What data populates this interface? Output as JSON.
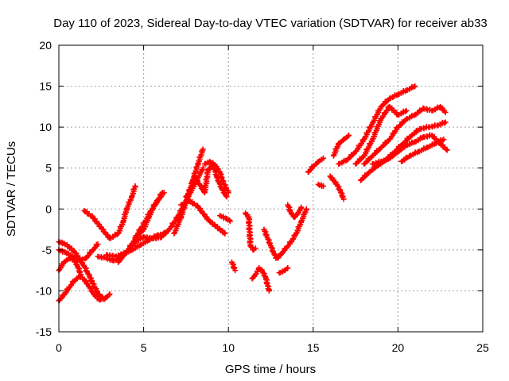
{
  "chart_data": {
    "type": "scatter",
    "title": "Day 110 of 2023, Sidereal Day-to-day VTEC variation (SDTVAR) for receiver ab33",
    "xlabel": "GPS time / hours",
    "ylabel": "SDTVAR / TECUs",
    "xlim": [
      0,
      25
    ],
    "ylim": [
      -15,
      20
    ],
    "xticks": [
      0,
      5,
      10,
      15,
      20,
      25
    ],
    "yticks": [
      -15,
      -10,
      -5,
      0,
      5,
      10,
      15,
      20
    ],
    "grid": true,
    "marker": "plus",
    "color": "#ff0000",
    "series": [
      {
        "x": [
          0.0,
          0.3,
          0.6,
          0.9,
          1.2,
          1.5,
          1.8,
          2.1,
          2.4,
          2.8,
          3.0
        ],
        "y": [
          -11.2,
          -10.5,
          -9.6,
          -8.8,
          -8.2,
          -8.6,
          -9.5,
          -10.5,
          -11.1,
          -10.8,
          -10.4
        ]
      },
      {
        "x": [
          0.0,
          0.3,
          0.6,
          0.9,
          1.2,
          1.5,
          1.8,
          2.1,
          2.4,
          2.7
        ],
        "y": [
          -4.0,
          -4.2,
          -4.6,
          -5.2,
          -6.0,
          -7.0,
          -8.2,
          -9.5,
          -10.6,
          -11.0
        ]
      },
      {
        "x": [
          0.0,
          0.4,
          0.8,
          1.2,
          1.6,
          2.0,
          2.3
        ],
        "y": [
          -5.0,
          -5.3,
          -5.8,
          -6.3,
          -6.0,
          -5.0,
          -4.3
        ]
      },
      {
        "x": [
          0.0,
          0.3,
          0.6,
          0.9,
          1.1,
          1.3
        ],
        "y": [
          -7.5,
          -6.5,
          -6.0,
          -6.2,
          -7.0,
          -8.0
        ]
      },
      {
        "x": [
          1.5,
          2.0,
          2.5,
          3.0,
          3.5,
          3.8,
          4.0,
          4.3,
          4.5
        ],
        "y": [
          -0.2,
          -1.0,
          -2.3,
          -3.6,
          -3.0,
          -1.5,
          0.0,
          1.5,
          2.8
        ]
      },
      {
        "x": [
          2.3,
          2.8,
          3.2,
          3.6,
          4.0,
          4.4,
          4.8,
          5.1,
          5.4,
          5.8,
          6.1
        ],
        "y": [
          -5.8,
          -6.0,
          -6.3,
          -6.0,
          -5.2,
          -4.0,
          -2.5,
          -1.5,
          -0.3,
          1.0,
          2.0
        ]
      },
      {
        "x": [
          2.8,
          3.3,
          3.8,
          4.3,
          4.8,
          5.3,
          5.8,
          6.3
        ],
        "y": [
          -5.6,
          -5.8,
          -5.5,
          -5.0,
          -4.4,
          -3.8,
          -3.2,
          -3.0
        ]
      },
      {
        "x": [
          3.5,
          4.0,
          4.5,
          5.0,
          5.5,
          6.0,
          6.5,
          7.0,
          7.5,
          8.0,
          8.5
        ],
        "y": [
          -6.5,
          -5.2,
          -4.0,
          -3.4,
          -3.6,
          -3.5,
          -2.5,
          -1.0,
          1.0,
          3.0,
          5.0
        ]
      },
      {
        "x": [
          4.5,
          5.0,
          5.3,
          5.6,
          5.9,
          6.2
        ],
        "y": [
          -3.5,
          -2.5,
          -1.0,
          0.3,
          1.2,
          2.0
        ]
      },
      {
        "x": [
          6.8,
          7.2,
          7.6,
          7.9,
          8.2,
          8.5
        ],
        "y": [
          -3.0,
          -1.0,
          1.5,
          3.5,
          5.5,
          7.3
        ]
      },
      {
        "x": [
          7.2,
          7.7,
          8.2,
          8.6,
          8.9,
          9.2,
          9.5,
          9.8
        ],
        "y": [
          0.5,
          1.0,
          0.3,
          -0.8,
          -1.5,
          -2.0,
          -2.5,
          -3.0
        ]
      },
      {
        "x": [
          7.5,
          7.8,
          8.0,
          8.3,
          8.6,
          8.8,
          9.1,
          9.3,
          9.6,
          9.9
        ],
        "y": [
          1.5,
          2.5,
          4.0,
          3.0,
          2.0,
          4.8,
          5.5,
          4.0,
          2.5,
          1.5
        ]
      },
      {
        "x": [
          8.6,
          8.9,
          9.2,
          9.5,
          9.7,
          10.0
        ],
        "y": [
          5.5,
          5.8,
          5.4,
          4.5,
          3.2,
          2.0
        ]
      },
      {
        "x": [
          9.5,
          9.9,
          10.1
        ],
        "y": [
          -0.8,
          -1.2,
          -1.5
        ]
      },
      {
        "x": [
          10.2,
          10.4
        ],
        "y": [
          -6.5,
          -7.5
        ]
      },
      {
        "x": [
          11.0,
          11.2,
          11.3,
          11.5,
          11.6
        ],
        "y": [
          -0.5,
          -1.0,
          -4.5,
          -5.0,
          -4.8
        ]
      },
      {
        "x": [
          11.4,
          11.6,
          11.8,
          12.0,
          12.2,
          12.4
        ],
        "y": [
          -8.5,
          -8.0,
          -7.2,
          -7.6,
          -8.4,
          -10.0
        ]
      },
      {
        "x": [
          12.1,
          12.3,
          12.5,
          12.7,
          12.9,
          13.1
        ],
        "y": [
          -2.5,
          -3.5,
          -4.5,
          -5.5,
          -6.0,
          -5.5
        ]
      },
      {
        "x": [
          12.8,
          13.1,
          13.4,
          13.7,
          14.0,
          14.3,
          14.6
        ],
        "y": [
          -6.0,
          -5.5,
          -4.8,
          -4.0,
          -3.0,
          -1.5,
          0.0
        ]
      },
      {
        "x": [
          13.5,
          13.7,
          13.9,
          14.1,
          14.3
        ],
        "y": [
          0.5,
          -0.5,
          -1.0,
          -0.5,
          0.2
        ]
      },
      {
        "x": [
          13.0,
          13.3,
          13.5
        ],
        "y": [
          -7.8,
          -7.5,
          -7.2
        ]
      },
      {
        "x": [
          14.7,
          15.0,
          15.3,
          15.6
        ],
        "y": [
          4.5,
          5.2,
          5.8,
          6.2
        ]
      },
      {
        "x": [
          15.3,
          15.6
        ],
        "y": [
          3.0,
          2.8
        ]
      },
      {
        "x": [
          16.0,
          16.2,
          16.4,
          16.6,
          16.8
        ],
        "y": [
          4.0,
          3.5,
          3.0,
          2.2,
          1.2
        ]
      },
      {
        "x": [
          16.2,
          16.5,
          16.8,
          17.1
        ],
        "y": [
          6.5,
          8.0,
          8.5,
          9.0
        ]
      },
      {
        "x": [
          16.5,
          17.0,
          17.5,
          18.0,
          18.5,
          19.0,
          19.5,
          20.0,
          20.5,
          21.0
        ],
        "y": [
          5.5,
          6.0,
          7.0,
          8.5,
          10.5,
          12.5,
          13.5,
          14.0,
          14.5,
          15.0
        ]
      },
      {
        "x": [
          17.5,
          18.0,
          18.5,
          19.0,
          19.5,
          20.0,
          20.5
        ],
        "y": [
          5.5,
          6.5,
          8.5,
          11.0,
          12.5,
          11.5,
          12.0
        ]
      },
      {
        "x": [
          18.0,
          18.5,
          19.0,
          19.5,
          20.0,
          20.5,
          21.0,
          21.5,
          22.0,
          22.5,
          22.8
        ],
        "y": [
          5.5,
          6.5,
          7.5,
          8.5,
          10.0,
          11.0,
          11.5,
          12.3,
          12.0,
          12.5,
          11.8
        ]
      },
      {
        "x": [
          17.8,
          18.3,
          18.8,
          19.3,
          19.8,
          20.3,
          20.8,
          21.3,
          21.8,
          22.3,
          22.8
        ],
        "y": [
          3.5,
          4.5,
          5.3,
          6.0,
          7.0,
          8.0,
          9.0,
          9.8,
          10.0,
          10.2,
          10.6
        ]
      },
      {
        "x": [
          18.5,
          19.0,
          19.5,
          20.0,
          20.5,
          21.0,
          21.5,
          22.0,
          22.5,
          22.9
        ],
        "y": [
          5.5,
          5.8,
          6.2,
          7.0,
          7.8,
          8.2,
          8.8,
          9.0,
          8.0,
          7.2
        ]
      },
      {
        "x": [
          20.2,
          20.7,
          21.2,
          21.7,
          22.2,
          22.7
        ],
        "y": [
          5.8,
          6.5,
          7.0,
          7.5,
          8.0,
          8.5
        ]
      }
    ]
  }
}
